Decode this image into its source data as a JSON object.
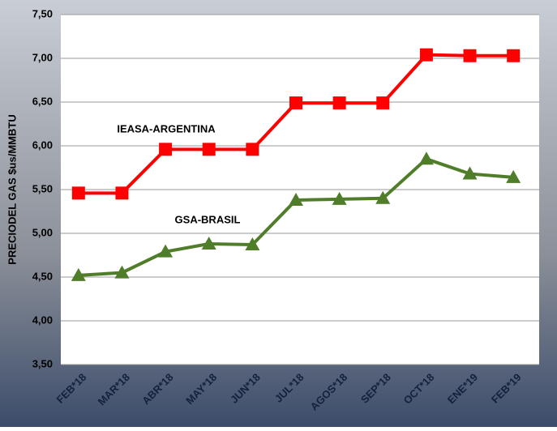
{
  "chart_data": {
    "type": "line",
    "y_label": "PRECIODEL GAS $us/MMBTU",
    "categories": [
      "FEB*18",
      "MAR*18",
      "ABR*18",
      "MAY*18",
      "JUN*18",
      "JUL*18",
      "AGOS*18",
      "SEP*18",
      "OCT*18",
      "ENE*19",
      "FEB*19"
    ],
    "series": [
      {
        "name": "IEASA-ARGENTINA",
        "color": "#ff0000",
        "marker": "square",
        "values": [
          5.46,
          5.46,
          5.96,
          5.96,
          5.96,
          6.49,
          6.49,
          6.49,
          7.04,
          7.03,
          7.03
        ]
      },
      {
        "name": "GSA-BRASIL",
        "color": "#4f7d2a",
        "marker": "triangle",
        "values": [
          4.52,
          4.55,
          4.79,
          4.88,
          4.87,
          5.38,
          5.39,
          5.4,
          5.85,
          5.68,
          5.64
        ]
      }
    ],
    "ylim": [
      3.5,
      7.5
    ],
    "yticks": [
      {
        "value": 3.5,
        "label": "3,50"
      },
      {
        "value": 4.0,
        "label": "4,00"
      },
      {
        "value": 4.5,
        "label": "4,50"
      },
      {
        "value": 5.0,
        "label": "5,00"
      },
      {
        "value": 5.5,
        "label": "5,50"
      },
      {
        "value": 6.0,
        "label": "6,00"
      },
      {
        "value": 6.5,
        "label": "6,50"
      },
      {
        "value": 7.0,
        "label": "7,00"
      },
      {
        "value": 7.5,
        "label": "7,50"
      }
    ],
    "grid": true
  }
}
